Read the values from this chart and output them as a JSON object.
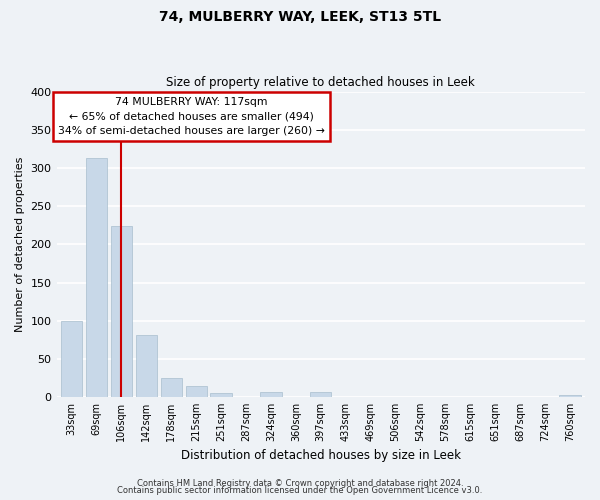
{
  "title": "74, MULBERRY WAY, LEEK, ST13 5TL",
  "subtitle": "Size of property relative to detached houses in Leek",
  "xlabel": "Distribution of detached houses by size in Leek",
  "ylabel": "Number of detached properties",
  "categories": [
    "33sqm",
    "69sqm",
    "106sqm",
    "142sqm",
    "178sqm",
    "215sqm",
    "251sqm",
    "287sqm",
    "324sqm",
    "360sqm",
    "397sqm",
    "433sqm",
    "469sqm",
    "506sqm",
    "542sqm",
    "578sqm",
    "615sqm",
    "651sqm",
    "687sqm",
    "724sqm",
    "760sqm"
  ],
  "values": [
    99,
    313,
    224,
    81,
    25,
    14,
    5,
    0,
    6,
    0,
    6,
    0,
    0,
    0,
    0,
    0,
    0,
    0,
    0,
    0,
    3
  ],
  "bar_color": "#c8d8e8",
  "bar_edge_color": "#a8bece",
  "vline_x": 2,
  "vline_color": "#cc0000",
  "ylim": [
    0,
    400
  ],
  "yticks": [
    0,
    50,
    100,
    150,
    200,
    250,
    300,
    350,
    400
  ],
  "annotation_title": "74 MULBERRY WAY: 117sqm",
  "annotation_line1": "← 65% of detached houses are smaller (494)",
  "annotation_line2": "34% of semi-detached houses are larger (260) →",
  "annotation_box_color": "#ffffff",
  "annotation_box_edge": "#cc0000",
  "footer_line1": "Contains HM Land Registry data © Crown copyright and database right 2024.",
  "footer_line2": "Contains public sector information licensed under the Open Government Licence v3.0.",
  "background_color": "#eef2f6",
  "plot_background": "#eef2f6",
  "grid_color": "#ffffff"
}
